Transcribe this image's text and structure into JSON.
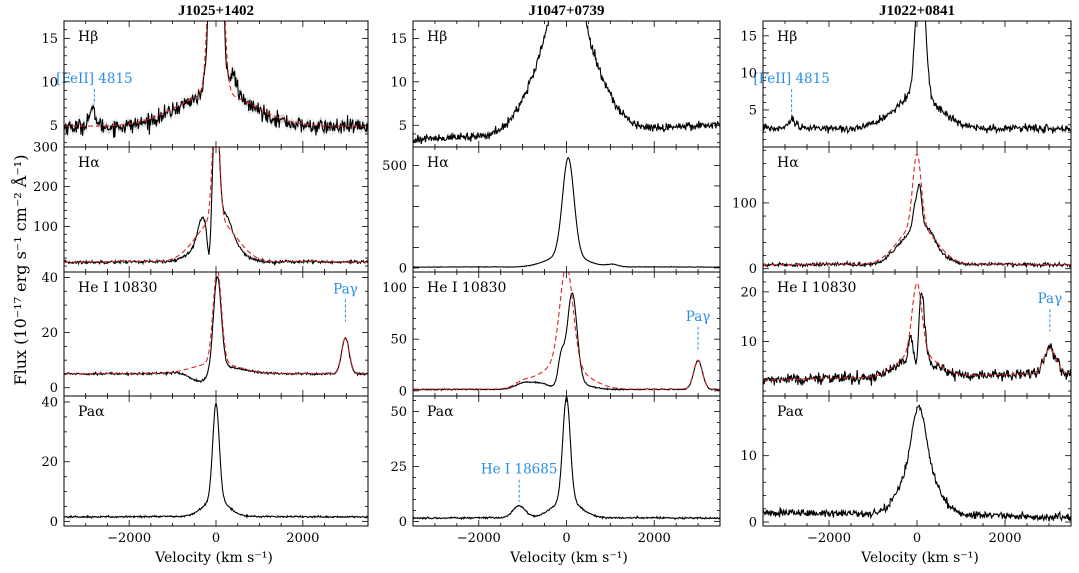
{
  "figure": {
    "ylabel": "Flux (10⁻¹⁷ erg s⁻¹ cm⁻² Å⁻¹)",
    "xlabel": "Velocity (km s⁻¹)",
    "colors": {
      "data": "#000000",
      "model": "#d62728",
      "annotation": "#2a8ee8",
      "band": "#bbbbbb"
    }
  },
  "chart_data": [
    {
      "type": "line",
      "column": 0,
      "row": 0,
      "title": "J1025+1402",
      "label": "Hβ",
      "xlim": [
        -3500,
        3500
      ],
      "ylim": [
        2.5,
        17
      ],
      "yticks": [
        5,
        10,
        15
      ],
      "xticks": [
        -2000,
        0,
        2000
      ],
      "minor_x": 500,
      "minor_y": 1,
      "series": [
        {
          "name": "data",
          "shape": "broad",
          "continuum": 4.7,
          "broad_amp": 4.0,
          "broad_center": 0,
          "broad_width": 900,
          "narrow_amp": 40,
          "narrow_width": 110,
          "noise": 0.45,
          "dip_center": -60,
          "dip_amp": 3.5,
          "dip_width": 60,
          "extra": [
            {
              "center": 400,
              "amp": 2.5,
              "width": 80
            },
            {
              "center": -2850,
              "amp": 1.8,
              "width": 90
            }
          ]
        },
        {
          "name": "model",
          "style": "dashed",
          "continuum": 4.8,
          "broad_amp": 3.9,
          "broad_center": 0,
          "broad_width": 950,
          "narrow_amp": 40,
          "narrow_width": 120
        }
      ],
      "annotations": [
        {
          "text": "[FeII] 4815",
          "x": -2800,
          "y_top": 9.2,
          "y_bottom": 7.4
        }
      ],
      "error_band": true
    },
    {
      "type": "line",
      "column": 0,
      "row": 1,
      "label": "Hα",
      "xlim": [
        -3500,
        3500
      ],
      "ylim": [
        -15,
        300
      ],
      "yticks": [
        100,
        200,
        300
      ],
      "xticks": [
        -2000,
        0,
        2000
      ],
      "minor_x": 500,
      "minor_y": 20,
      "series": [
        {
          "name": "data",
          "continuum": 8,
          "broad_amp": 95,
          "broad_center": 0,
          "broad_width": 420,
          "narrow_amp": 320,
          "narrow_width": 70,
          "noise": 2,
          "dip_center": -150,
          "dip_amp": 95,
          "dip_width": 45,
          "extra": [
            {
              "center": -330,
              "amp": 45,
              "width": 90
            },
            {
              "center": 250,
              "amp": 40,
              "width": 120
            }
          ]
        },
        {
          "name": "model",
          "style": "dashed",
          "continuum": 8,
          "broad_amp": 110,
          "broad_center": 0,
          "broad_width": 480,
          "narrow_amp": 320,
          "narrow_width": 75
        }
      ]
    },
    {
      "type": "line",
      "column": 0,
      "row": 2,
      "label": "He I 10830",
      "xlim": [
        -3500,
        3500
      ],
      "ylim": [
        -3,
        42
      ],
      "yticks": [
        0,
        20,
        40
      ],
      "xticks": [
        -2000,
        0,
        2000
      ],
      "minor_x": 500,
      "minor_y": 5,
      "series": [
        {
          "name": "data",
          "continuum": 5,
          "broad_amp": 3,
          "broad_center": 0,
          "broad_width": 600,
          "narrow_amp": 34,
          "narrow_width": 90,
          "narrow_center": 30,
          "noise": 0.2,
          "dip_center": -350,
          "dip_amp": 5,
          "dip_width": 250,
          "extra": [
            {
              "center": 2980,
              "amp": 13,
              "width": 85
            }
          ]
        },
        {
          "name": "model",
          "style": "dashed",
          "continuum": 5,
          "broad_amp": 4,
          "broad_center": 0,
          "broad_width": 550,
          "narrow_amp": 34,
          "narrow_width": 95,
          "narrow_center": 30,
          "extra": [
            {
              "center": 2980,
              "amp": 13,
              "width": 90
            }
          ]
        }
      ],
      "annotations": [
        {
          "text": "Paγ",
          "x": 2980,
          "y_top": 32,
          "y_bottom": 24
        }
      ]
    },
    {
      "type": "line",
      "column": 0,
      "row": 3,
      "label": "Paα",
      "xlim": [
        -3500,
        3500
      ],
      "ylim": [
        -1.5,
        42
      ],
      "yticks": [
        0,
        20,
        40
      ],
      "xticks": [
        -2000,
        0,
        2000
      ],
      "minor_x": 500,
      "minor_y": 5,
      "series": [
        {
          "name": "data",
          "continuum": 1.5,
          "broad_amp": 6,
          "broad_center": 0,
          "broad_width": 300,
          "narrow_amp": 32,
          "narrow_width": 75,
          "noise": 0.15
        }
      ]
    },
    {
      "type": "line",
      "column": 1,
      "row": 0,
      "title": "J1047+0739",
      "label": "Hβ",
      "xlim": [
        -3500,
        3500
      ],
      "ylim": [
        2.5,
        17
      ],
      "yticks": [
        5,
        10,
        15
      ],
      "xticks": [
        -2000,
        0,
        2000
      ],
      "minor_x": 500,
      "minor_y": 1,
      "series": [
        {
          "name": "data",
          "continuum": 3.8,
          "broad_amp": 14,
          "broad_center": 0,
          "broad_width": 700,
          "narrow_amp": 8,
          "narrow_width": 250,
          "noise": 0.25,
          "slope": 0.00025
        }
      ]
    },
    {
      "type": "line",
      "column": 1,
      "row": 1,
      "label": "Hα",
      "xlim": [
        -3500,
        3500
      ],
      "ylim": [
        -20,
        590
      ],
      "yticks": [
        0,
        100,
        200,
        300,
        400,
        500
      ],
      "ytick_labels": [
        "0",
        "",
        "",
        "",
        "",
        "500"
      ],
      "xticks": [
        -2000,
        0,
        2000
      ],
      "minor_x": 500,
      "minor_y": 100,
      "series": [
        {
          "name": "data",
          "continuum": 3,
          "broad_amp": 60,
          "broad_center": 0,
          "broad_width": 450,
          "narrow_amp": 475,
          "narrow_width": 130,
          "narrow_center": 40,
          "noise": 0.6,
          "extra": [
            {
              "center": 1050,
              "amp": 12,
              "width": 130
            }
          ]
        }
      ]
    },
    {
      "type": "line",
      "column": 1,
      "row": 2,
      "label": "He I 10830",
      "xlim": [
        -3500,
        3500
      ],
      "ylim": [
        -5,
        115
      ],
      "yticks": [
        0,
        50,
        100
      ],
      "xticks": [
        -2000,
        0,
        2000
      ],
      "minor_x": 500,
      "minor_y": 10,
      "series": [
        {
          "name": "data",
          "continuum": 1,
          "broad_amp": 12,
          "broad_center": -200,
          "broad_width": 500,
          "narrow_amp": 85,
          "narrow_width": 110,
          "narrow_center": 130,
          "noise": 0.3,
          "dip_center": -300,
          "dip_amp": 8,
          "dip_width": 180,
          "extra": [
            {
              "center": 3000,
              "amp": 28,
              "width": 100
            },
            {
              "center": -1000,
              "amp": 4,
              "width": 180
            },
            {
              "center": -120,
              "amp": 25,
              "width": 70
            }
          ]
        },
        {
          "name": "model",
          "style": "dashed",
          "continuum": 1,
          "broad_amp": 25,
          "broad_center": -100,
          "broad_width": 550,
          "narrow_amp": 95,
          "narrow_width": 150,
          "narrow_center": 0,
          "extra": [
            {
              "center": 3000,
              "amp": 28,
              "width": 100
            },
            {
              "center": -1000,
              "amp": 4,
              "width": 180
            }
          ]
        }
      ],
      "annotations": [
        {
          "text": "Paγ",
          "x": 3000,
          "y_top": 62,
          "y_bottom": 40
        }
      ]
    },
    {
      "type": "line",
      "column": 1,
      "row": 3,
      "label": "Paα",
      "xlim": [
        -3500,
        3500
      ],
      "ylim": [
        -2,
        57
      ],
      "yticks": [
        0,
        25,
        50
      ],
      "xticks": [
        -2000,
        0,
        2000
      ],
      "minor_x": 500,
      "minor_y": 5,
      "series": [
        {
          "name": "data",
          "continuum": 1.5,
          "broad_amp": 8,
          "broad_center": 0,
          "broad_width": 350,
          "narrow_amp": 47,
          "narrow_width": 85,
          "noise": 0.2,
          "extra": [
            {
              "center": -1080,
              "amp": 5.5,
              "width": 140
            }
          ]
        }
      ],
      "annotations": [
        {
          "text": "He I 18685",
          "x": -1080,
          "y_top": 19,
          "y_bottom": 9
        }
      ]
    },
    {
      "type": "line",
      "column": 2,
      "row": 0,
      "title": "J1022+0841",
      "label": "Hβ",
      "xlim": [
        -3500,
        3500
      ],
      "ylim": [
        0,
        17
      ],
      "yticks": [
        5,
        10,
        15
      ],
      "xticks": [
        -2000,
        0,
        2000
      ],
      "minor_x": 500,
      "minor_y": 1,
      "series": [
        {
          "name": "data",
          "continuum": 2.4,
          "broad_amp": 4.5,
          "broad_center": 0,
          "broad_width": 550,
          "narrow_amp": 20,
          "narrow_width": 100,
          "narrow_center": 80,
          "noise": 0.25,
          "extra": [
            {
              "center": -2850,
              "amp": 1.2,
              "width": 90
            }
          ]
        }
      ],
      "annotations": [
        {
          "text": "[FeII] 4815",
          "x": -2850,
          "y_top": 7.8,
          "y_bottom": 4.2
        }
      ]
    },
    {
      "type": "line",
      "column": 2,
      "row": 1,
      "label": "Hα",
      "xlim": [
        -3500,
        3500
      ],
      "ylim": [
        -5,
        185
      ],
      "yticks": [
        0,
        100
      ],
      "xticks": [
        -2000,
        0,
        2000
      ],
      "minor_x": 500,
      "minor_y": 20,
      "series": [
        {
          "name": "data",
          "continuum": 5,
          "broad_amp": 55,
          "broad_center": 0,
          "broad_width": 420,
          "narrow_amp": 95,
          "narrow_width": 70,
          "narrow_center": 20,
          "noise": 1.3,
          "dip_center": 0,
          "dip_amp": 38,
          "dip_width": 40,
          "extra": [
            {
              "center": 300,
              "amp": 12,
              "width": 100
            }
          ]
        },
        {
          "name": "model",
          "style": "dashed",
          "continuum": 5,
          "broad_amp": 60,
          "broad_center": 0,
          "broad_width": 460,
          "narrow_amp": 110,
          "narrow_width": 95,
          "narrow_center": 0
        }
      ]
    },
    {
      "type": "line",
      "column": 2,
      "row": 2,
      "label": "He I 10830",
      "xlim": [
        -3500,
        3500
      ],
      "ylim": [
        -1,
        24
      ],
      "yticks": [
        10,
        20
      ],
      "xticks": [
        -2000,
        0,
        2000
      ],
      "minor_x": 500,
      "minor_y": 2,
      "series": [
        {
          "name": "data",
          "continuum": 2.8,
          "broad_amp": 4,
          "broad_center": 0,
          "broad_width": 450,
          "narrow_amp": 13,
          "narrow_width": 70,
          "narrow_center": 100,
          "noise": 0.55,
          "dip_center": 0,
          "dip_amp": 5,
          "dip_width": 35,
          "slope": 0.0002,
          "extra": [
            {
              "center": 3020,
              "amp": 5,
              "width": 130
            },
            {
              "center": -150,
              "amp": 4,
              "width": 50
            }
          ]
        },
        {
          "name": "model",
          "style": "dashed",
          "continuum": 2.8,
          "broad_amp": 5,
          "broad_center": 0,
          "broad_width": 450,
          "narrow_amp": 14,
          "narrow_width": 110,
          "narrow_center": 0,
          "slope": 0.0002,
          "extra": [
            {
              "center": 3020,
              "amp": 5,
              "width": 140
            }
          ]
        }
      ],
      "annotations": [
        {
          "text": "Paγ",
          "x": 3020,
          "y_top": 16.5,
          "y_bottom": 12
        }
      ]
    },
    {
      "type": "line",
      "column": 2,
      "row": 3,
      "label": "Paα",
      "xlim": [
        -3500,
        3500
      ],
      "ylim": [
        -0.6,
        19
      ],
      "yticks": [
        0,
        10
      ],
      "xticks": [
        -2000,
        0,
        2000
      ],
      "minor_x": 500,
      "minor_y": 2,
      "series": [
        {
          "name": "data",
          "continuum": 0.9,
          "broad_amp": 8.5,
          "broad_center": 40,
          "broad_width": 400,
          "narrow_amp": 8,
          "narrow_width": 150,
          "narrow_center": 40,
          "noise": 0.3,
          "slope": -0.0001
        }
      ]
    }
  ]
}
